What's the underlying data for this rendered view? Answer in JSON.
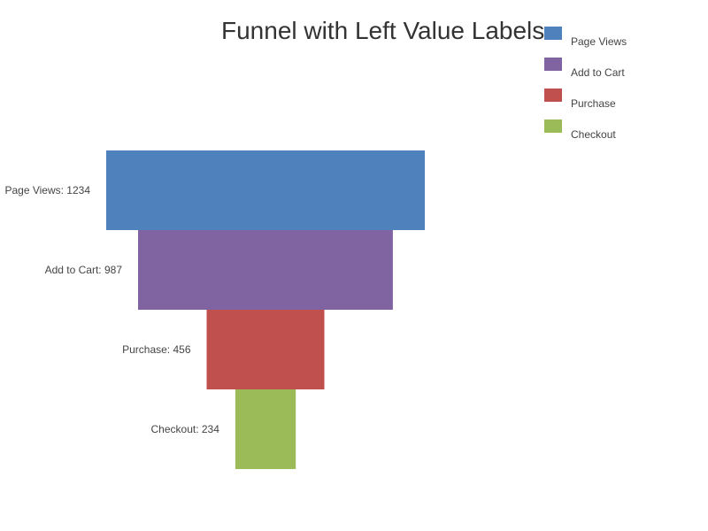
{
  "chart_data": {
    "type": "funnel",
    "title": "Funnel with Left Value Labels",
    "categories": [
      "Page Views",
      "Add to Cart",
      "Purchase",
      "Checkout"
    ],
    "values": [
      1234,
      987,
      456,
      234
    ],
    "labels": [
      "Page Views: 1234",
      "Add to Cart: 987",
      "Purchase: 456",
      "Checkout: 234"
    ],
    "colors": [
      "#4f81bd",
      "#8064a2",
      "#c0504d",
      "#9bbb59"
    ],
    "legend": {
      "position": "top-right",
      "entries": [
        "Page Views",
        "Add to Cart",
        "Purchase",
        "Checkout"
      ]
    },
    "grid": false
  }
}
